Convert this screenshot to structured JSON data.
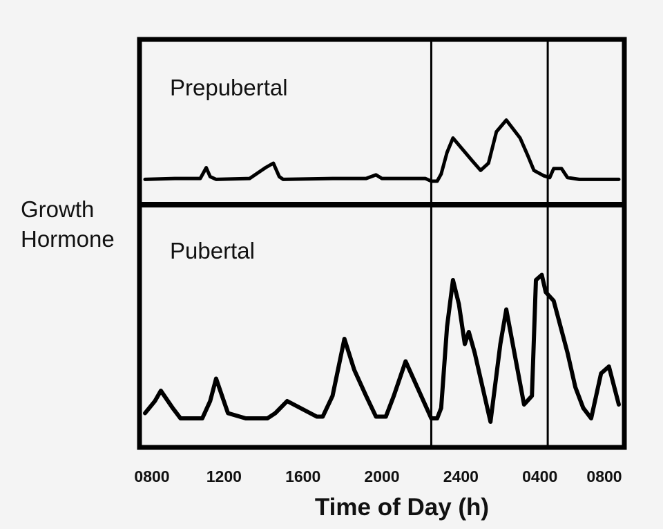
{
  "chart_data": {
    "type": "line",
    "ylabel": [
      "Growth",
      "Hormone"
    ],
    "xlabel": "Time of Day (h)",
    "x_ticks": [
      {
        "label": "0800",
        "hour": 0
      },
      {
        "label": "1200",
        "hour": 4
      },
      {
        "label": "1600",
        "hour": 8
      },
      {
        "label": "2000",
        "hour": 12
      },
      {
        "label": "2400",
        "hour": 16
      },
      {
        "label": "0400",
        "hour": 20
      },
      {
        "label": "0800",
        "hour": 24
      }
    ],
    "xlim": [
      0,
      24
    ],
    "ylim": [
      0,
      100
    ],
    "sleep_markers_hour": [
      14.5,
      20.4
    ],
    "panels": [
      {
        "name": "Prepubertal",
        "x": [
          0,
          1.5,
          2.8,
          3.1,
          3.3,
          3.6,
          5.3,
          6.1,
          6.5,
          6.8,
          7.0,
          9.5,
          11.2,
          11.7,
          12.0,
          14.2,
          14.5,
          14.8,
          15.0,
          15.3,
          15.6,
          16.1,
          16.6,
          17.0,
          17.4,
          17.8,
          18.3,
          19.0,
          19.4,
          19.7,
          20.2,
          20.5,
          20.7,
          21.1,
          21.4,
          22.0,
          24
        ],
        "values": [
          2,
          3,
          3,
          15,
          5,
          2,
          3,
          15,
          20,
          5,
          2,
          3,
          3,
          7,
          3,
          3,
          0,
          0,
          8,
          32,
          48,
          35,
          22,
          12,
          20,
          55,
          68,
          48,
          28,
          12,
          6,
          4,
          14,
          14,
          4,
          2,
          2
        ]
      },
      {
        "name": "Pubertal",
        "x": [
          0,
          0.5,
          0.8,
          1.4,
          1.8,
          2.9,
          3.3,
          3.6,
          4.2,
          5.1,
          5.7,
          6.2,
          6.6,
          7.2,
          8.7,
          9.0,
          9.5,
          10.1,
          10.6,
          11.2,
          11.7,
          12.2,
          12.6,
          13.2,
          14.5,
          14.8,
          15.0,
          15.3,
          15.6,
          15.9,
          16.2,
          16.4,
          16.7,
          17.5,
          18.0,
          18.3,
          19.2,
          19.6,
          19.8,
          20.1,
          20.3,
          20.7,
          21.4,
          21.8,
          22.2,
          22.6,
          23.1,
          23.5,
          24
        ],
        "values": [
          5,
          12,
          18,
          8,
          2,
          2,
          12,
          25,
          5,
          2,
          2,
          2,
          5,
          12,
          3,
          3,
          15,
          48,
          30,
          15,
          3,
          3,
          15,
          35,
          2,
          2,
          8,
          55,
          82,
          68,
          45,
          52,
          40,
          0,
          45,
          65,
          10,
          15,
          82,
          85,
          75,
          70,
          40,
          20,
          8,
          2,
          28,
          32,
          10
        ]
      }
    ]
  }
}
